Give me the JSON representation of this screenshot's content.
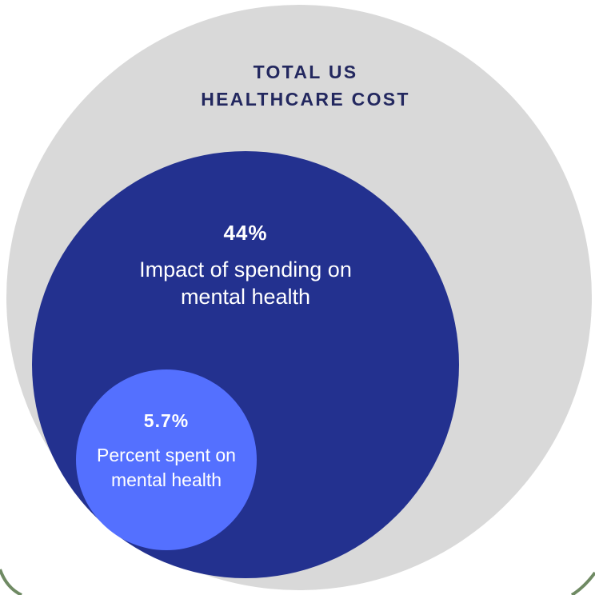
{
  "diagram": {
    "type": "nested-circles",
    "outer": {
      "title_line1": "TOTAL US",
      "title_line2": "HEALTHCARE COST",
      "color": "#d9d9d9",
      "text_color": "#23285f"
    },
    "middle": {
      "value": "44%",
      "label_line1": "Impact of spending on",
      "label_line2": "mental health",
      "color": "#23318f"
    },
    "inner": {
      "value": "5.7%",
      "label_line1": "Percent spent on",
      "label_line2": "mental health",
      "color": "#5470ff"
    },
    "corner_accent_color": "#6f8a63"
  }
}
